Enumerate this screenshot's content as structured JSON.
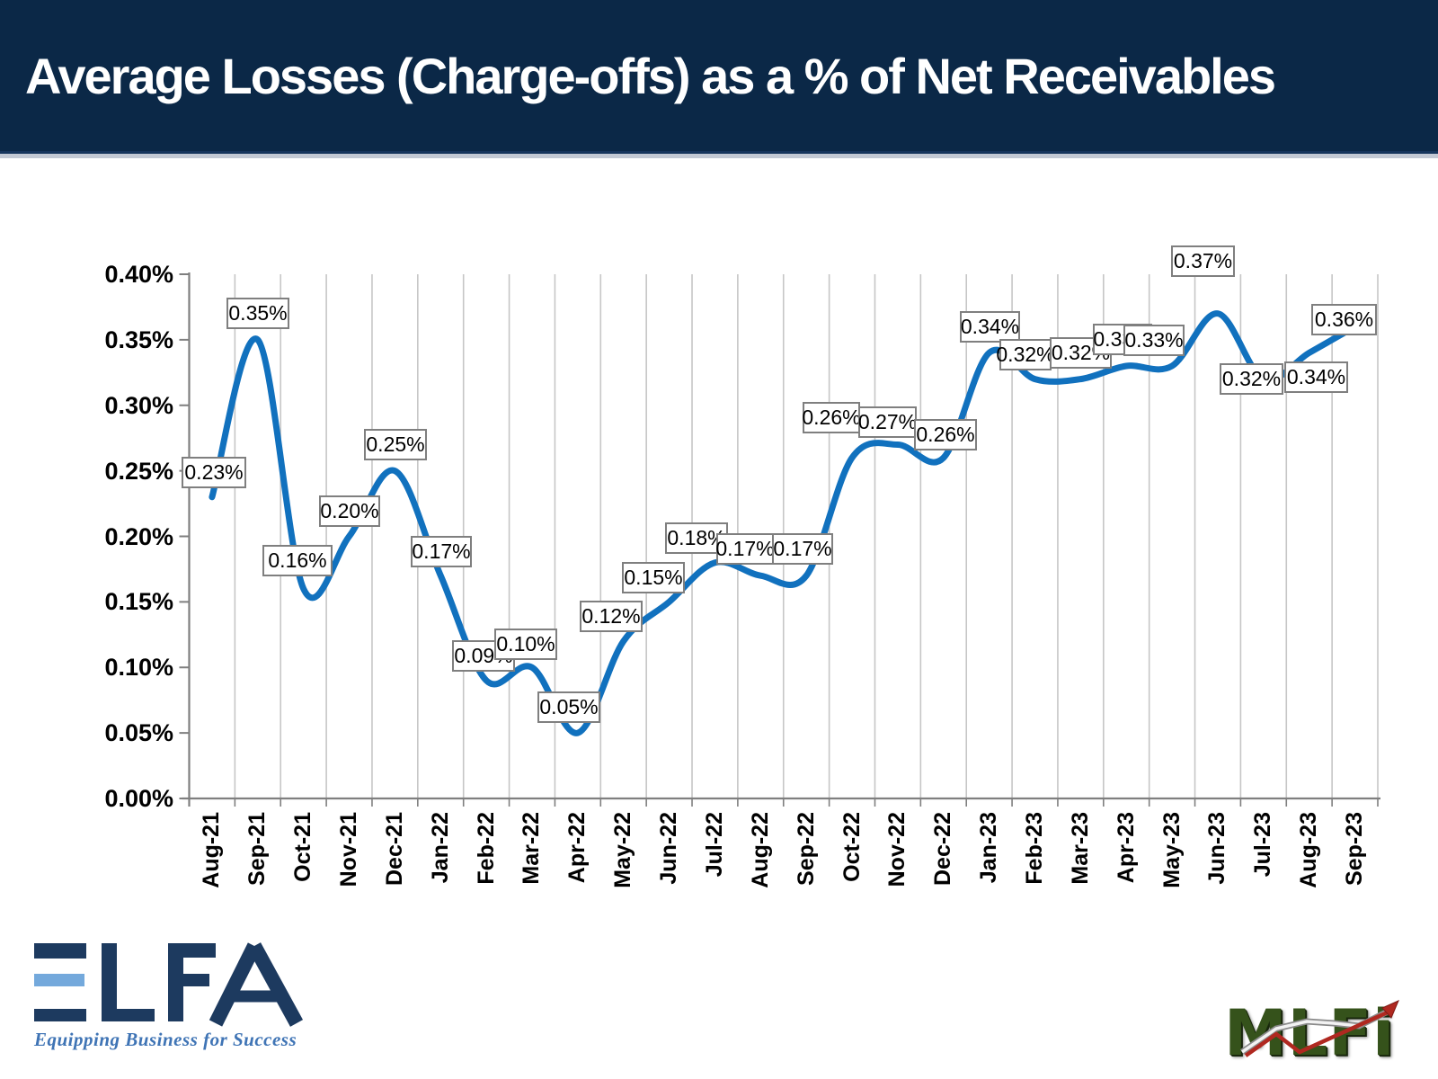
{
  "header": {
    "title": "Average Losses (Charge-offs) as a % of Net Receivables",
    "bg_color": "#0b2847",
    "text_color": "#ffffff"
  },
  "chart_data": {
    "type": "line",
    "smooth": true,
    "line_color": "#1171be",
    "gridline_color": "#c6c6c6",
    "axis_color": "#7f7f7f",
    "legend": "none",
    "grid": "vertical-only",
    "x": [
      "Aug-21",
      "Sep-21",
      "Oct-21",
      "Nov-21",
      "Dec-21",
      "Jan-22",
      "Feb-22",
      "Mar-22",
      "Apr-22",
      "May-22",
      "Jun-22",
      "Jul-22",
      "Aug-22",
      "Sep-22",
      "Oct-22",
      "Nov-22",
      "Dec-22",
      "Jan-23",
      "Feb-23",
      "Mar-23",
      "Apr-23",
      "May-23",
      "Jun-23",
      "Jul-23",
      "Aug-23",
      "Sep-23"
    ],
    "series": [
      {
        "name": "Average Losses (Charge-offs) as a % of Net Receivables",
        "values": [
          0.23,
          0.35,
          0.16,
          0.2,
          0.25,
          0.17,
          0.09,
          0.1,
          0.05,
          0.12,
          0.15,
          0.18,
          0.17,
          0.17,
          0.26,
          0.27,
          0.26,
          0.34,
          0.32,
          0.32,
          0.33,
          0.33,
          0.37,
          0.32,
          0.34,
          0.36
        ]
      }
    ],
    "data_labels": [
      "0.23%",
      "0.35%",
      "0.16%",
      "0.20%",
      "0.25%",
      "0.17%",
      "0.09%",
      "0.10%",
      "0.05%",
      "0.12%",
      "0.15%",
      "0.18%",
      "0.17%",
      "0.17%",
      "0.26%",
      "0.27%",
      "0.26%",
      "0.34%",
      "0.32%",
      "0.32%",
      "0.33%",
      "0.33%",
      "0.37%",
      "0.32%",
      "0.34%",
      "0.36%"
    ],
    "ylabel": "",
    "xlabel": "",
    "ylim": [
      0.0,
      0.4
    ],
    "yticks": [
      "0.00%",
      "0.05%",
      "0.10%",
      "0.15%",
      "0.20%",
      "0.25%",
      "0.30%",
      "0.35%",
      "0.40%"
    ],
    "unit": "%"
  },
  "footer": {
    "elfa": {
      "name": "ELFA",
      "tagline": "Equipping Business for Success",
      "navy_color": "#1d3a5f",
      "light_blue_color": "#74a9dc",
      "tagline_color": "#3f74b5"
    },
    "mlfi": {
      "name": "MLFi",
      "green_color": "#35521b",
      "red_accent_color": "#b02820"
    }
  }
}
